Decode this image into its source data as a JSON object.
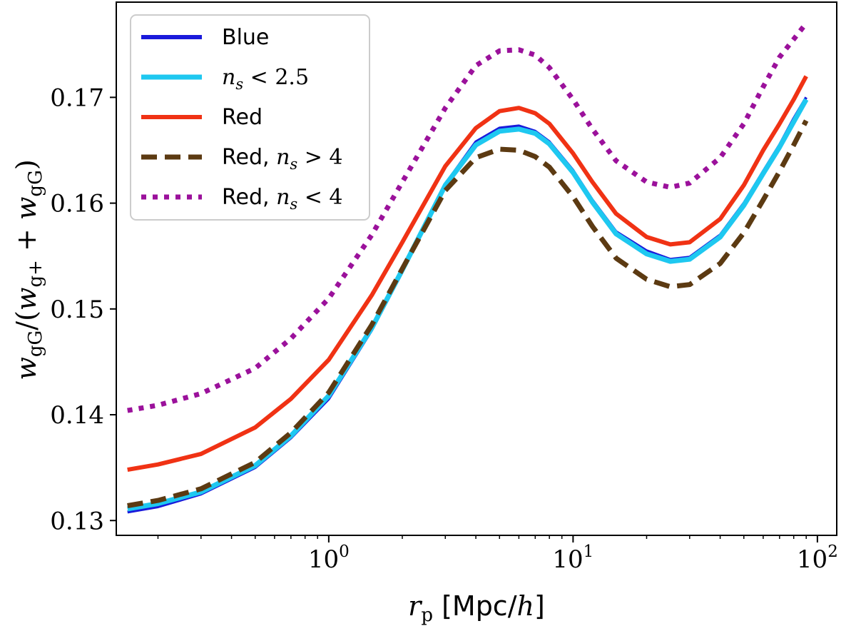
{
  "chart_data": {
    "type": "line",
    "xscale": "log",
    "xlim": [
      0.135,
      120
    ],
    "ylim": [
      0.1286,
      0.179
    ],
    "xlabel": "r_p [Mpc/h]",
    "ylabel": "w_gG/(w_g+ + w_gG)",
    "yticks": [
      0.13,
      0.14,
      0.15,
      0.16,
      0.17
    ],
    "ytick_labels": [
      "0.13",
      "0.14",
      "0.15",
      "0.16",
      "0.17"
    ],
    "xtick_labels": [
      {
        "base": "10",
        "exp": "0",
        "value": 1
      },
      {
        "base": "10",
        "exp": "1",
        "value": 10
      },
      {
        "base": "10",
        "exp": "2",
        "value": 100
      }
    ],
    "legend": {
      "placement": "top-left"
    },
    "series": [
      {
        "name": "Blue",
        "label": "Blue",
        "color": "#1a1adb",
        "style": "solid",
        "x": [
          0.15,
          0.2,
          0.3,
          0.5,
          0.7,
          1.0,
          1.5,
          2.0,
          3.0,
          4.0,
          5.0,
          6.0,
          7.0,
          8.0,
          10,
          12,
          15,
          20,
          25,
          30,
          40,
          50,
          60,
          70,
          80,
          90
        ],
        "y": [
          0.1308,
          0.1313,
          0.1325,
          0.135,
          0.1378,
          0.1415,
          0.148,
          0.1535,
          0.1618,
          0.1658,
          0.1671,
          0.1673,
          0.1668,
          0.1658,
          0.1631,
          0.1603,
          0.1573,
          0.1555,
          0.1547,
          0.1549,
          0.157,
          0.16,
          0.163,
          0.1655,
          0.168,
          0.17
        ]
      },
      {
        "name": "ns-lt-2.5",
        "label": "n_s < 2.5",
        "label_prefix": "",
        "label_math": "n",
        "label_sub": "s",
        "label_rest": " < 2.5",
        "color": "#1ec8f0",
        "style": "solid",
        "x": [
          0.15,
          0.2,
          0.3,
          0.5,
          0.7,
          1.0,
          1.5,
          2.0,
          3.0,
          4.0,
          5.0,
          6.0,
          7.0,
          8.0,
          10,
          12,
          15,
          20,
          25,
          30,
          40,
          50,
          60,
          70,
          80,
          90
        ],
        "y": [
          0.1311,
          0.1316,
          0.1327,
          0.1352,
          0.138,
          0.1418,
          0.1482,
          0.1537,
          0.1617,
          0.1655,
          0.1668,
          0.167,
          0.1666,
          0.1656,
          0.1629,
          0.1601,
          0.1571,
          0.1552,
          0.1545,
          0.1547,
          0.1568,
          0.1598,
          0.1628,
          0.1653,
          0.1677,
          0.1698
        ]
      },
      {
        "name": "Red",
        "label": "Red",
        "color": "#f03214",
        "style": "solid",
        "x": [
          0.15,
          0.2,
          0.3,
          0.5,
          0.7,
          1.0,
          1.5,
          2.0,
          3.0,
          4.0,
          5.0,
          6.0,
          7.0,
          8.0,
          10,
          12,
          15,
          20,
          25,
          30,
          40,
          50,
          60,
          70,
          80,
          90
        ],
        "y": [
          0.1348,
          0.1353,
          0.1363,
          0.1388,
          0.1415,
          0.1452,
          0.1513,
          0.1563,
          0.1635,
          0.1671,
          0.1687,
          0.169,
          0.1685,
          0.1675,
          0.1647,
          0.162,
          0.159,
          0.1568,
          0.1561,
          0.1563,
          0.1585,
          0.1617,
          0.165,
          0.1675,
          0.1698,
          0.172
        ]
      },
      {
        "name": "Red-ns-gt-4",
        "label": "Red, n_s > 4",
        "label_prefix": "Red, ",
        "label_math": "n",
        "label_sub": "s",
        "label_rest": " > 4",
        "color": "#5c3a12",
        "style": "dashed",
        "x": [
          0.15,
          0.2,
          0.3,
          0.5,
          0.7,
          1.0,
          1.5,
          2.0,
          3.0,
          4.0,
          5.0,
          6.0,
          7.0,
          8.0,
          10,
          12,
          15,
          20,
          25,
          30,
          40,
          50,
          60,
          70,
          80,
          90
        ],
        "y": [
          0.1314,
          0.1319,
          0.133,
          0.1355,
          0.1383,
          0.1421,
          0.1485,
          0.1538,
          0.1612,
          0.1643,
          0.1651,
          0.165,
          0.1644,
          0.1634,
          0.1606,
          0.1578,
          0.1548,
          0.1528,
          0.1521,
          0.1523,
          0.1543,
          0.1572,
          0.1603,
          0.163,
          0.1655,
          0.1678
        ]
      },
      {
        "name": "Red-ns-lt-4",
        "label": "Red, n_s < 4",
        "label_prefix": "Red, ",
        "label_math": "n",
        "label_sub": "s",
        "label_rest": " < 4",
        "color": "#9b119b",
        "style": "dotted",
        "x": [
          0.15,
          0.2,
          0.3,
          0.5,
          0.7,
          1.0,
          1.5,
          2.0,
          3.0,
          4.0,
          5.0,
          6.0,
          7.0,
          8.0,
          10,
          12,
          15,
          20,
          25,
          30,
          40,
          50,
          60,
          70,
          80,
          90
        ],
        "y": [
          0.1404,
          0.1409,
          0.142,
          0.1444,
          0.1472,
          0.151,
          0.157,
          0.162,
          0.169,
          0.173,
          0.1744,
          0.1745,
          0.174,
          0.1728,
          0.1698,
          0.167,
          0.164,
          0.162,
          0.1615,
          0.1619,
          0.1643,
          0.1675,
          0.171,
          0.1738,
          0.1755,
          0.177
        ]
      }
    ]
  }
}
